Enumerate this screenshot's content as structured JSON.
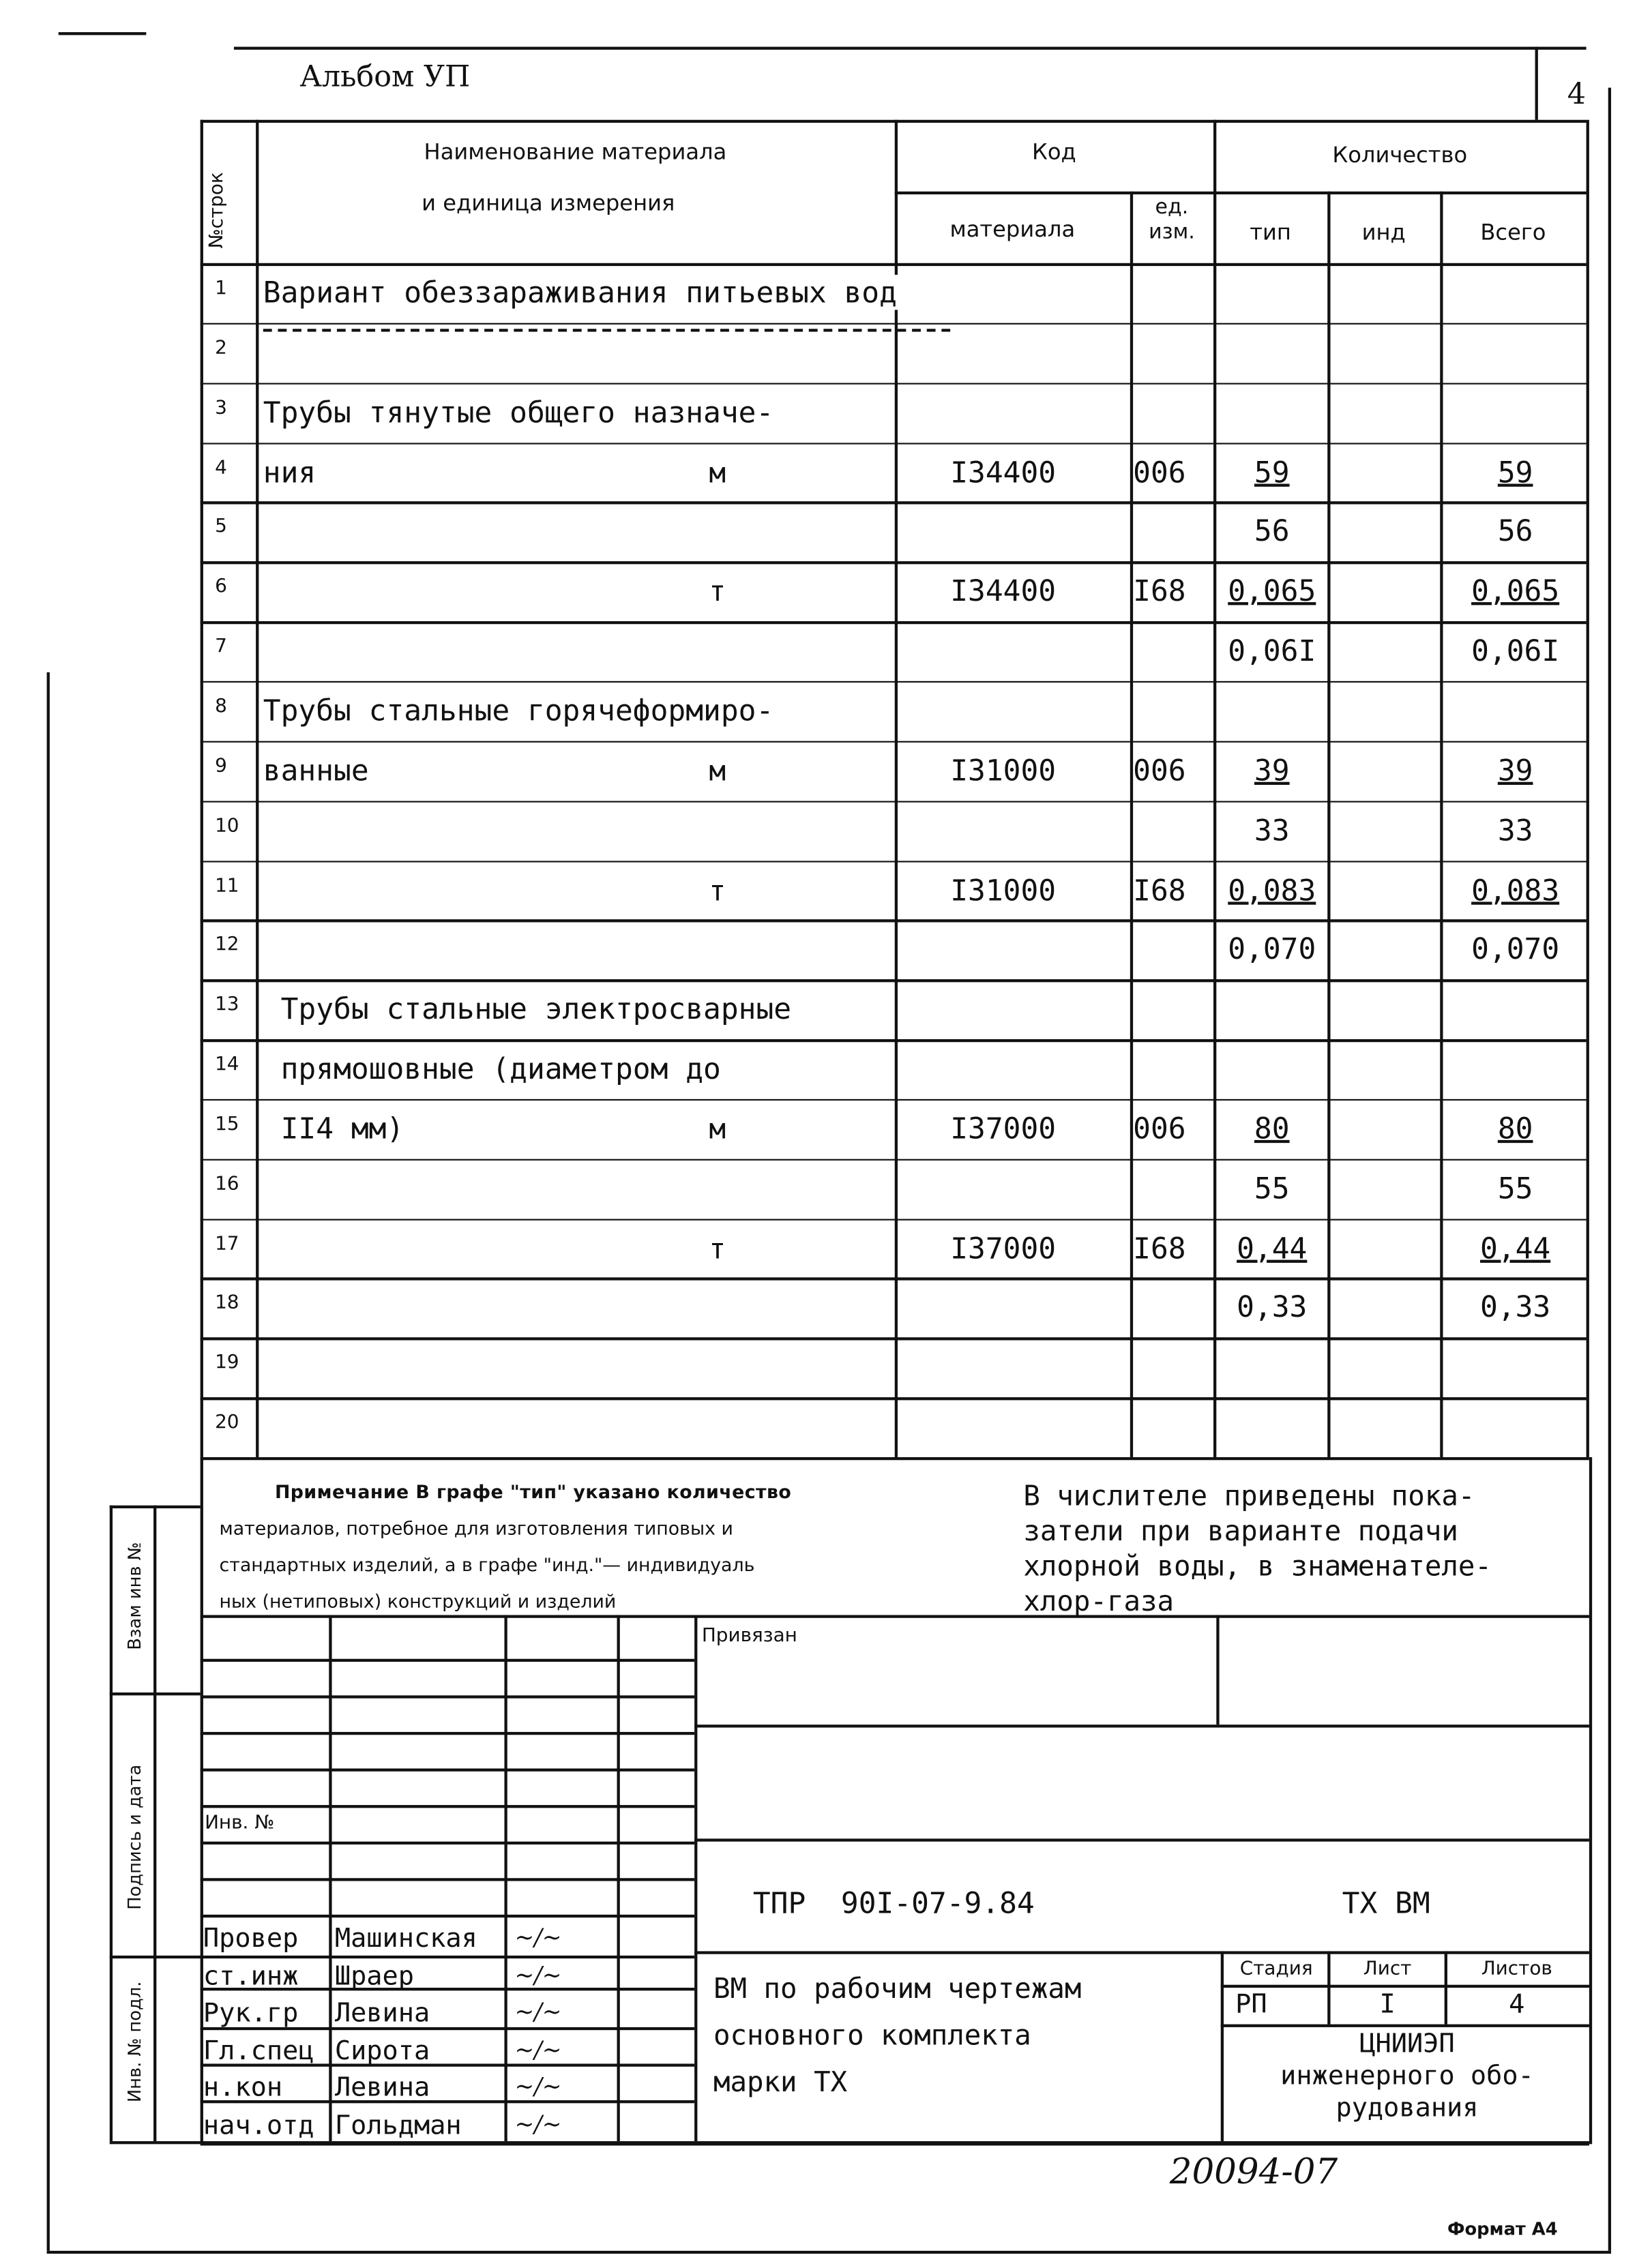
{
  "header": {
    "album": "Альбом УП",
    "sheet_number": "4"
  },
  "table": {
    "col_row_no": "№строк",
    "col_name": [
      "Наименование материала",
      "и единица измерения"
    ],
    "col_code": "Код",
    "col_code_material": "материала",
    "col_code_unit": "ед. изм.",
    "col_qty": "Количество",
    "col_qty_tip": "тип",
    "col_qty_ind": "инд",
    "col_qty_total": "Всего",
    "rows": [
      {
        "n": "1",
        "name": "Вариант обеззараживания питьевых вод"
      },
      {
        "n": "2",
        "dashed": true
      },
      {
        "n": "3",
        "name": "Трубы тянутые общего назначе-"
      },
      {
        "n": "4",
        "name": "ния",
        "unit": "м",
        "code": "I34400",
        "ed": "006",
        "tip": "59",
        "total": "59",
        "frac": true
      },
      {
        "n": "5",
        "tip": "56",
        "total": "56"
      },
      {
        "n": "6",
        "unit": "т",
        "code": "I34400",
        "ed": "I68",
        "tip": "0,065",
        "total": "0,065",
        "frac": true
      },
      {
        "n": "7",
        "tip": "0,06I",
        "total": "0,06I"
      },
      {
        "n": "8",
        "name": "Трубы стальные горячеформиро-"
      },
      {
        "n": "9",
        "name": "ванные",
        "unit": "м",
        "code": "I31000",
        "ed": "006",
        "tip": "39",
        "total": "39",
        "frac": true
      },
      {
        "n": "10",
        "tip": "33",
        "total": "33"
      },
      {
        "n": "11",
        "unit": "т",
        "code": "I31000",
        "ed": "I68",
        "tip": "0,083",
        "total": "0,083",
        "frac": true
      },
      {
        "n": "12",
        "tip": "0,070",
        "total": "0,070"
      },
      {
        "n": "13",
        "name": " Трубы стальные электросварные"
      },
      {
        "n": "14",
        "name": " прямошовные (диаметром до"
      },
      {
        "n": "15",
        "name": " II4 мм)",
        "unit": "м",
        "code": "I37000",
        "ed": "006",
        "tip": "80",
        "total": "80",
        "frac": true
      },
      {
        "n": "16",
        "tip": "55",
        "total": "55"
      },
      {
        "n": "17",
        "unit": "т",
        "code": "I37000",
        "ed": "I68",
        "tip": "0,44",
        "total": "0,44",
        "frac": true
      },
      {
        "n": "18",
        "tip": "0,33",
        "total": "0,33"
      },
      {
        "n": "19"
      },
      {
        "n": "20"
      }
    ]
  },
  "notes": {
    "left": [
      "Примечание В графе \"тип\" указано количество",
      "материалов, потребное для изготовления типовых и",
      "стандартных изделий, а в графе \"инд.\"— индивидуаль",
      "ных (нетиповых) конструкций и изделий"
    ],
    "right": [
      "В числителе приведены пока-",
      "затели при варианте подачи",
      "хлорной воды, в знаменателе-",
      "хлор-газа"
    ]
  },
  "stamp": {
    "privyazan": "Привязан",
    "inv_no": "Инв. №",
    "doc_code": "ТПР  90I-07-9.84",
    "mark": "ТХ ВМ",
    "title": [
      "ВМ по рабочим чертежам",
      "основного комплекта",
      "марки ТХ"
    ],
    "stage_label": "Стадия",
    "sheet_label": "Лист",
    "sheets_label": "Листов",
    "stage": "РП",
    "sheet": "I",
    "sheets": "4",
    "org": [
      "ЦНИИЭП",
      "инженерного обо-",
      "рудования"
    ],
    "signers": [
      {
        "role": "Провер",
        "name": "Машинская"
      },
      {
        "role": "ст.инж",
        "name": "Шраер"
      },
      {
        "role": "Рук.гр",
        "name": "Левина"
      },
      {
        "role": "Гл.спец",
        "name": "Сирота"
      },
      {
        "role": "н.кон",
        "name": "Левина"
      },
      {
        "role": "нач.отд",
        "name": "Гольдман"
      }
    ]
  },
  "side": {
    "vzam": "Взам инв №",
    "podpis": "Подпись и дата",
    "inv_podl": "Инв. № подл."
  },
  "footer": {
    "handwritten_number": "20094-07",
    "format": "Формат А4"
  }
}
